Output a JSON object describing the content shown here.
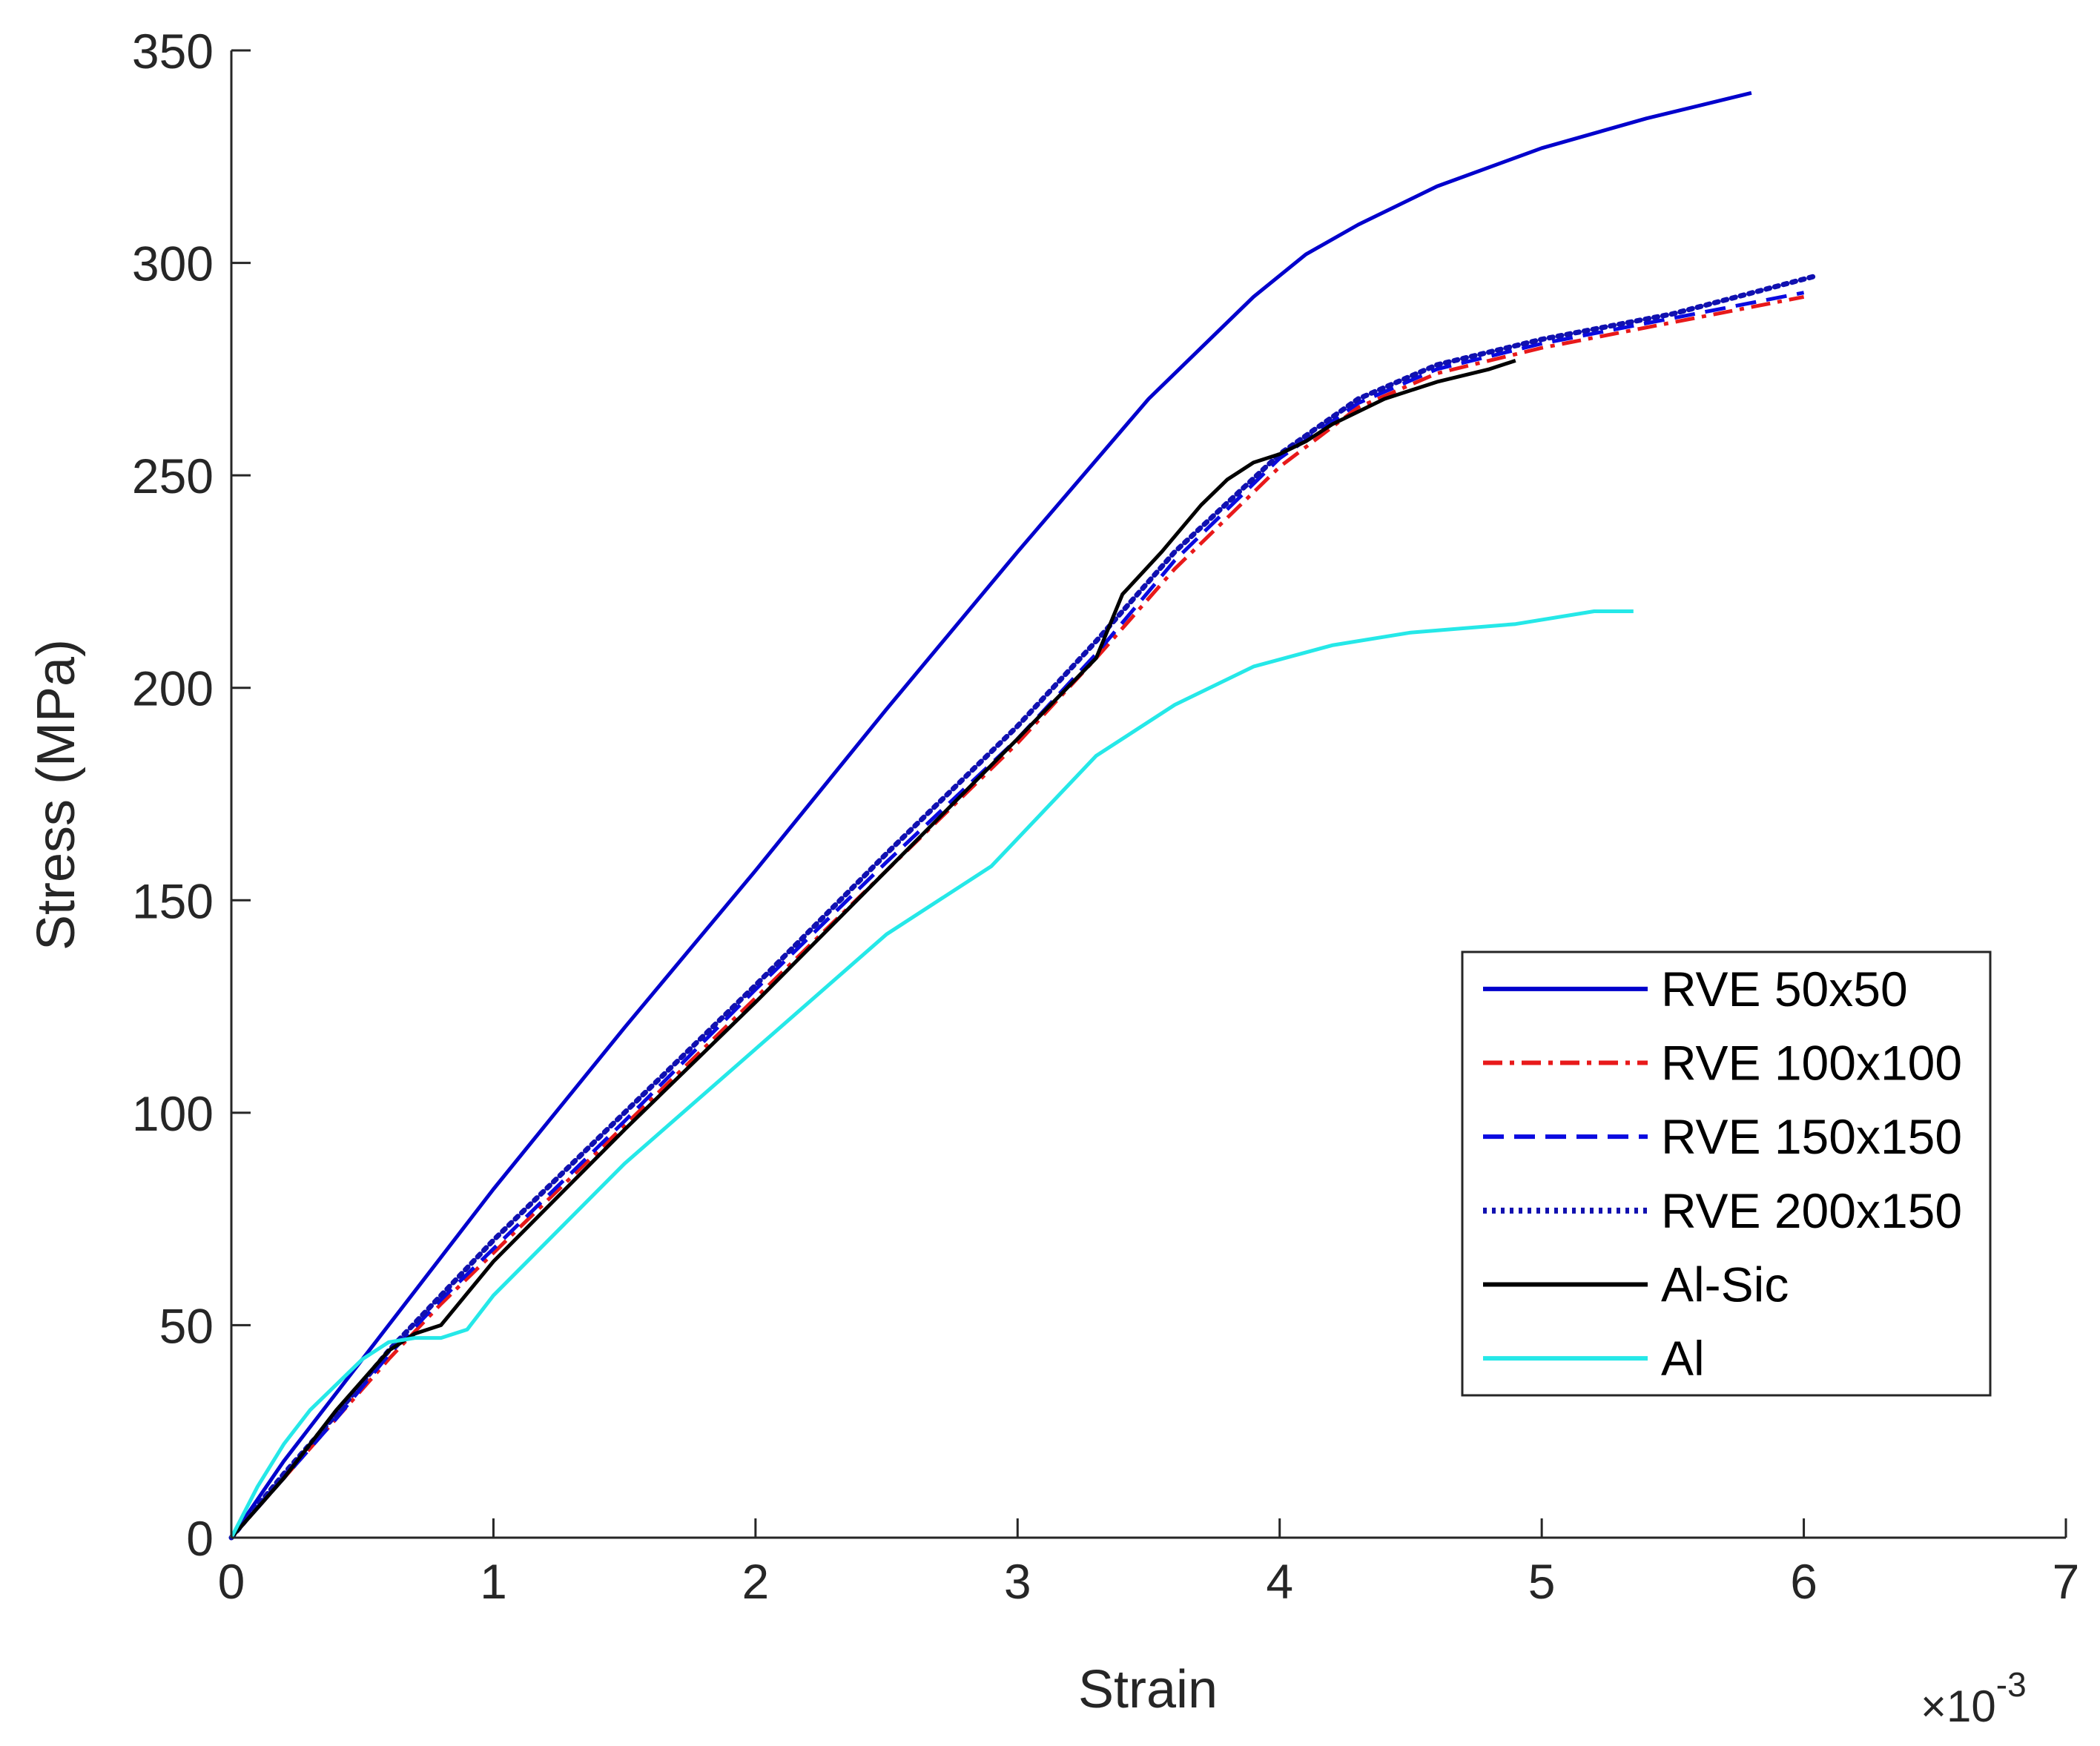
{
  "chart_data": {
    "type": "line",
    "title": "",
    "xlabel": "Strain",
    "ylabel": "Stress (MPa)",
    "x_multiplier": "×10",
    "x_multiplier_exponent": "-3",
    "xlim": [
      0,
      7
    ],
    "ylim": [
      0,
      350
    ],
    "xticks": [
      0,
      1,
      2,
      3,
      4,
      5,
      6,
      7
    ],
    "yticks": [
      0,
      50,
      100,
      150,
      200,
      250,
      300,
      350
    ],
    "xtick_labels": [
      "0",
      "1",
      "2",
      "3",
      "4",
      "5",
      "6",
      "7"
    ],
    "ytick_labels": [
      "0",
      "50",
      "100",
      "150",
      "200",
      "250",
      "300",
      "350"
    ],
    "grid": false,
    "legend_position": "lower-right",
    "series": [
      {
        "name": "RVE 50x50",
        "color": "#0000cc",
        "style": "solid",
        "x": [
          0,
          0.1,
          0.2,
          0.3,
          0.4,
          0.5,
          0.6,
          1.0,
          1.5,
          2.0,
          2.5,
          3.0,
          3.5,
          3.9,
          4.1,
          4.3,
          4.6,
          5.0,
          5.4,
          5.8
        ],
        "y": [
          0,
          9,
          18,
          26,
          34,
          42,
          50,
          82,
          120,
          157,
          195,
          232,
          268,
          292,
          302,
          309,
          318,
          327,
          334,
          340
        ]
      },
      {
        "name": "RVE 100x100",
        "color": "#e8191a",
        "style": "dashdot",
        "x": [
          0,
          0.2,
          0.4,
          0.6,
          0.8,
          1.0,
          1.5,
          2.0,
          2.5,
          3.0,
          3.3,
          3.6,
          4.0,
          4.3,
          4.6,
          5.0,
          5.5,
          6.0
        ],
        "y": [
          0,
          14,
          28,
          42,
          55,
          67,
          97,
          127,
          157,
          187,
          207,
          228,
          252,
          266,
          274,
          280,
          286,
          292
        ]
      },
      {
        "name": "RVE 150x150",
        "color": "#0a0ae0",
        "style": "dashed",
        "x": [
          0,
          0.2,
          0.4,
          0.6,
          0.8,
          1.0,
          1.5,
          2.0,
          2.5,
          3.0,
          3.3,
          3.6,
          4.0,
          4.3,
          4.6,
          5.0,
          5.5,
          6.0
        ],
        "y": [
          0,
          14,
          28,
          43,
          56,
          68,
          98,
          129,
          159,
          188,
          208,
          230,
          254,
          267,
          275,
          281,
          287,
          293
        ]
      },
      {
        "name": "RVE 200x150",
        "color": "#1010b0",
        "style": "dotted",
        "x": [
          0,
          0.2,
          0.4,
          0.6,
          0.8,
          1.0,
          1.5,
          2.0,
          2.5,
          3.0,
          3.3,
          3.6,
          4.0,
          4.3,
          4.6,
          5.0,
          5.5,
          6.05
        ],
        "y": [
          0,
          15,
          29,
          44,
          57,
          70,
          100,
          130,
          161,
          191,
          211,
          232,
          255,
          268,
          276,
          282,
          288,
          297
        ]
      },
      {
        "name": "Al-Sic",
        "color": "#000000",
        "style": "solid",
        "x": [
          0,
          0.2,
          0.4,
          0.6,
          0.7,
          0.8,
          1.0,
          1.5,
          2.0,
          2.5,
          3.0,
          3.3,
          3.4,
          3.55,
          3.7,
          3.8,
          3.9,
          4.0,
          4.1,
          4.2,
          4.4,
          4.6,
          4.8,
          4.9
        ],
        "y": [
          0,
          14,
          30,
          44,
          48,
          50,
          65,
          96,
          126,
          157,
          188,
          207,
          222,
          232,
          243,
          249,
          253,
          255,
          258,
          262,
          268,
          272,
          275,
          277
        ]
      },
      {
        "name": "Al",
        "color": "#25e8e8",
        "style": "solid",
        "x": [
          0,
          0.1,
          0.2,
          0.3,
          0.4,
          0.5,
          0.6,
          0.7,
          0.8,
          0.9,
          1.0,
          1.5,
          2.0,
          2.5,
          2.9,
          3.1,
          3.3,
          3.6,
          3.9,
          4.2,
          4.5,
          4.9,
          5.2,
          5.35
        ],
        "y": [
          0,
          12,
          22,
          30,
          36,
          42,
          46,
          47,
          47,
          49,
          57,
          88,
          115,
          142,
          158,
          171,
          184,
          196,
          205,
          210,
          213,
          215,
          218,
          218
        ]
      }
    ]
  }
}
